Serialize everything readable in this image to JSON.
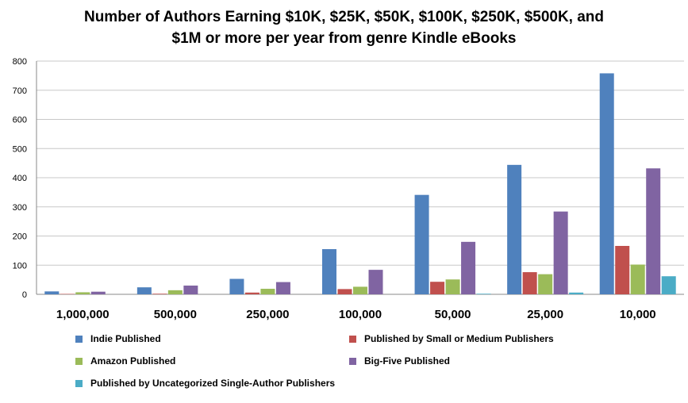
{
  "title_line1": "Number of Authors Earning $10K, $25K, $50K, $100K, $250K, $500K, and",
  "title_line2": "$1M or more per year from genre Kindle eBooks",
  "chart_data": {
    "type": "bar",
    "title": "Number of Authors Earning $10K, $25K, $50K, $100K, $250K, $500K, and $1M or more per year from genre Kindle eBooks",
    "xlabel": "",
    "ylabel": "",
    "ylim": [
      0,
      800
    ],
    "yticks": [
      0,
      100,
      200,
      300,
      400,
      500,
      600,
      700,
      800
    ],
    "grid": true,
    "legend_position": "bottom",
    "categories": [
      "1,000,000",
      "500,000",
      "250,000",
      "100,000",
      "50,000",
      "25,000",
      "10,000"
    ],
    "series": [
      {
        "name": "Indie Published",
        "color": "#4f81bd",
        "values": [
          10,
          24,
          53,
          155,
          341,
          444,
          758
        ]
      },
      {
        "name": "Published by Small or Medium Publishers",
        "color": "#c0504d",
        "values": [
          1,
          2,
          6,
          18,
          43,
          76,
          166
        ]
      },
      {
        "name": "Amazon Published",
        "color": "#9bbb59",
        "values": [
          7,
          14,
          19,
          26,
          51,
          69,
          102
        ]
      },
      {
        "name": "Big-Five Published",
        "color": "#8064a2",
        "values": [
          9,
          30,
          42,
          84,
          180,
          284,
          432
        ]
      },
      {
        "name": "Published by Uncategorized Single-Author Publishers",
        "color": "#4bacc6",
        "values": [
          0,
          0,
          0,
          0,
          2,
          6,
          62
        ]
      }
    ]
  }
}
